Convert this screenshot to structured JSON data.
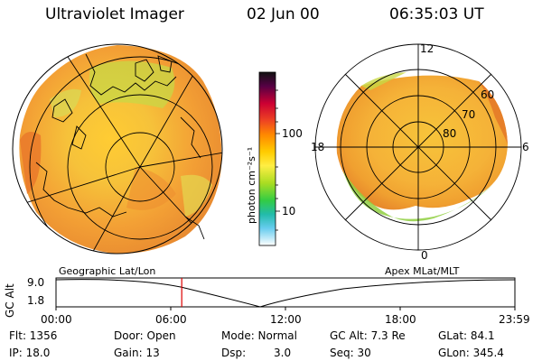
{
  "header": {
    "title": "Ultraviolet Imager",
    "date": "02 Jun 00",
    "time": "06:35:03 UT"
  },
  "colorbar": {
    "unit": "photon cm⁻²s⁻¹",
    "ticks": [
      "100",
      "10"
    ]
  },
  "polar_plot": {
    "mlt_labels": {
      "top": "12",
      "left": "18",
      "right": "6",
      "bottom": "0"
    },
    "lat_labels": [
      "60",
      "70",
      "80"
    ]
  },
  "timeline": {
    "left_label": "Geographic Lat/Lon",
    "right_label": "Apex MLat/MLT",
    "y_axis_title": "GC Alt",
    "y_ticks": [
      "9.0",
      "1.8"
    ],
    "x_ticks": [
      "00:00",
      "06:00",
      "12:00",
      "18:00",
      "23:59"
    ],
    "current_time_fraction": 0.274,
    "colors": {
      "marker": "#dd0000"
    }
  },
  "info": {
    "flt": "Flt: 1356",
    "ip": "IP: 18.0",
    "door": "Door: Open",
    "gain": "Gain: 13",
    "mode": "Mode: Normal",
    "dsp_label": "Dsp:",
    "dsp_value": "3.0",
    "gc_alt": "GC Alt: 7.3 Re",
    "seq": "Seq: 30",
    "glat": "GLat: 84.1",
    "glon": "GLon: 345.4"
  }
}
